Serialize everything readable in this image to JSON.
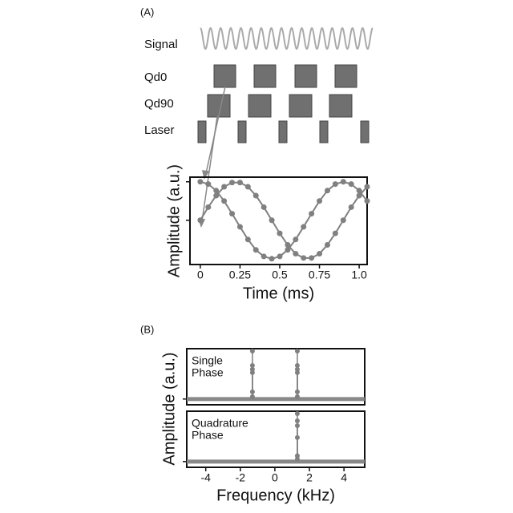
{
  "diagram": {
    "panel_label": "(A)",
    "rows": [
      "Signal",
      "Qd0",
      "Qd90",
      "Laser"
    ]
  },
  "panel_b": {
    "panel_label": "(B)",
    "ylabel": "Amplitude (a.u.)"
  },
  "chart_data": [
    {
      "type": "line",
      "xlabel": "Time (ms)",
      "ylabel": "Amplitude (a.u.)",
      "x": [
        0,
        0.05,
        0.1,
        0.15,
        0.2,
        0.25,
        0.3,
        0.35,
        0.4,
        0.45,
        0.5,
        0.55,
        0.6,
        0.65,
        0.7,
        0.75,
        0.8,
        0.85,
        0.9,
        0.95,
        1.0,
        1.05
      ],
      "series": [
        {
          "color": "#808080",
          "values": [
            1,
            0.94,
            0.77,
            0.5,
            0.17,
            -0.17,
            -0.5,
            -0.77,
            -0.94,
            -1,
            -0.94,
            -0.77,
            -0.5,
            -0.17,
            0.17,
            0.5,
            0.77,
            0.94,
            1,
            0.94,
            0.77,
            0.5
          ]
        },
        {
          "color": "#808080",
          "values": [
            0,
            0.34,
            0.64,
            0.87,
            0.98,
            0.98,
            0.87,
            0.64,
            0.34,
            0,
            -0.34,
            -0.64,
            -0.87,
            -0.98,
            -0.98,
            -0.87,
            -0.64,
            -0.34,
            0,
            0.34,
            0.64,
            0.87
          ]
        }
      ],
      "xlim": [
        -0.065,
        1.05
      ],
      "xticks": [
        0,
        0.25,
        0.5,
        0.75,
        {
          "value": 1,
          "label": "1.0"
        }
      ],
      "ylim": [
        -1.15,
        1.12
      ],
      "yticks": [
        0,
        1
      ]
    },
    {
      "type": "stem",
      "annotation": [
        "Single",
        "Phase"
      ],
      "color": "#808080",
      "x": [
        -1.3,
        -1.3,
        -1.3,
        -1.3,
        -1.3,
        -1.3,
        1.3,
        1.3,
        1.3,
        1.3,
        1.3,
        1.3
      ],
      "values": [
        1,
        0.7,
        0.62,
        0.55,
        0.15,
        0.05,
        1,
        0.7,
        0.62,
        0.55,
        0.15,
        0.05
      ],
      "xlim": [
        -5.1,
        5.2
      ],
      "ylim": [
        -0.12,
        1.05
      ],
      "yticks": [
        0
      ]
    },
    {
      "type": "stem",
      "annotation": [
        "Quadrature",
        "Phase"
      ],
      "color": "#808080",
      "xlabel": "Frequency (kHz)",
      "x": [
        1.3,
        1.3,
        1.3,
        1.3,
        1.3,
        1.3
      ],
      "values": [
        1,
        0.85,
        0.75,
        0.5,
        0.12,
        0.05
      ],
      "xlim": [
        -5.1,
        5.2
      ],
      "xticks": [
        -4,
        -2,
        0,
        2,
        4
      ],
      "ylim": [
        -0.12,
        1.05
      ],
      "yticks": [
        0
      ]
    }
  ]
}
